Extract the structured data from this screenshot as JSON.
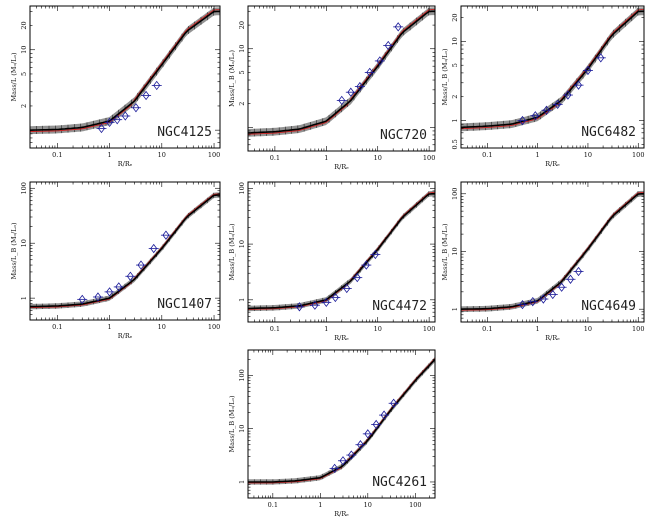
{
  "figure": {
    "x_axis_label": "R/Rₑ",
    "x_ticks": [
      "0.1",
      "1",
      "10",
      "100"
    ],
    "colors": {
      "band": "#3a3a3a",
      "model": "#000000",
      "alt_model": "#cc2222",
      "observations": "#1a1a99"
    }
  },
  "chart_data": [
    {
      "type": "line",
      "title": "NGC4125",
      "ylabel": "Mass/L (Mₒ/Lₒ)",
      "y_ticks": [
        "2",
        "5",
        "10",
        "20"
      ],
      "xlim": [
        0.03,
        130
      ],
      "ylim": [
        0.6,
        35
      ],
      "series": [
        {
          "name": "mass-to-light model",
          "x": [
            0.03,
            0.1,
            0.3,
            1,
            3,
            10,
            30,
            100
          ],
          "values": [
            1.0,
            1.02,
            1.08,
            1.3,
            2.3,
            6.5,
            17,
            30
          ]
        }
      ],
      "observations": {
        "x": [
          0.7,
          1.0,
          1.4,
          2.0,
          3.2,
          5.0,
          8.0
        ],
        "values": [
          1.05,
          1.25,
          1.35,
          1.5,
          1.9,
          2.7,
          3.6
        ]
      }
    },
    {
      "type": "line",
      "title": "NGC720",
      "ylabel": "Mass/L_B (Mₒ/Lₒ)",
      "y_ticks": [
        "2",
        "5",
        "10",
        "20"
      ],
      "xlim": [
        0.03,
        130
      ],
      "ylim": [
        0.5,
        35
      ],
      "series": [
        {
          "name": "mass-to-light model",
          "x": [
            0.03,
            0.1,
            0.3,
            1,
            3,
            10,
            30,
            100
          ],
          "values": [
            0.85,
            0.88,
            0.95,
            1.2,
            2.2,
            6,
            16,
            30
          ]
        }
      ],
      "observations": {
        "x": [
          2.0,
          3.0,
          4.5,
          7.0,
          11,
          16,
          25
        ],
        "values": [
          2.2,
          2.8,
          3.3,
          5.0,
          7.0,
          11,
          19
        ]
      }
    },
    {
      "type": "line",
      "title": "NGC6482",
      "ylabel": "Mass/L_B (Mₒ/Lₒ)",
      "y_ticks": [
        "0.5",
        "1",
        "2",
        "5",
        "10",
        "20"
      ],
      "xlim": [
        0.03,
        130
      ],
      "ylim": [
        0.45,
        28
      ],
      "series": [
        {
          "name": "mass-to-light model",
          "x": [
            0.03,
            0.1,
            0.3,
            1,
            3,
            10,
            30,
            100
          ],
          "values": [
            0.82,
            0.85,
            0.9,
            1.1,
            1.8,
            4.5,
            12,
            24
          ]
        }
      ],
      "observations": {
        "x": [
          0.5,
          0.9,
          1.5,
          2.5,
          4.0,
          6.5,
          10,
          18
        ],
        "values": [
          1.0,
          1.15,
          1.35,
          1.6,
          2.1,
          2.8,
          4.3,
          6.2
        ]
      }
    },
    {
      "type": "line",
      "title": "NGC1407",
      "ylabel": "Mass/L_B (Mₒ/Lₒ)",
      "y_ticks": [
        "1",
        "10",
        "100"
      ],
      "xlim": [
        0.03,
        130
      ],
      "ylim": [
        0.4,
        130
      ],
      "series": [
        {
          "name": "mass-to-light model",
          "x": [
            0.03,
            0.1,
            0.3,
            1,
            3,
            10,
            30,
            100
          ],
          "values": [
            0.7,
            0.72,
            0.78,
            1.0,
            2.2,
            8,
            30,
            75
          ]
        }
      ],
      "observations": {
        "x": [
          0.3,
          0.6,
          1.0,
          1.5,
          2.5,
          4.0,
          7.0,
          12
        ],
        "values": [
          0.95,
          1.05,
          1.3,
          1.6,
          2.5,
          4.0,
          8.0,
          14
        ]
      }
    },
    {
      "type": "line",
      "title": "NGC4472",
      "ylabel": "Mass/L_B (Mₒ/Lₒ)",
      "y_ticks": [
        "1",
        "10",
        "100"
      ],
      "xlim": [
        0.03,
        130
      ],
      "ylim": [
        0.4,
        130
      ],
      "series": [
        {
          "name": "mass-to-light model",
          "x": [
            0.03,
            0.1,
            0.3,
            1,
            3,
            10,
            30,
            100
          ],
          "values": [
            0.7,
            0.72,
            0.78,
            1.0,
            2.2,
            8,
            30,
            80
          ]
        }
      ],
      "observations": {
        "x": [
          0.3,
          0.6,
          1.0,
          1.5,
          2.5,
          4.0,
          6.0,
          9.0
        ],
        "values": [
          0.75,
          0.8,
          0.9,
          1.1,
          1.6,
          2.5,
          4.2,
          6.5
        ]
      }
    },
    {
      "type": "line",
      "title": "NGC4649",
      "ylabel": "Mass/L_B (Mₒ/Lₒ)",
      "y_ticks": [
        "1",
        "10",
        "100"
      ],
      "xlim": [
        0.03,
        130
      ],
      "ylim": [
        0.6,
        160
      ],
      "series": [
        {
          "name": "mass-to-light model",
          "x": [
            0.03,
            0.1,
            0.3,
            1,
            3,
            10,
            30,
            100
          ],
          "values": [
            1.0,
            1.02,
            1.1,
            1.4,
            3.0,
            11,
            40,
            100
          ]
        }
      ],
      "observations": {
        "x": [
          0.5,
          0.8,
          1.3,
          2.0,
          3.0,
          4.5,
          6.5
        ],
        "values": [
          1.2,
          1.35,
          1.5,
          1.8,
          2.4,
          3.3,
          4.5
        ]
      }
    },
    {
      "type": "line",
      "title": "NGC4261",
      "ylabel": "Mass/L_B (Mₒ/Lₒ)",
      "y_ticks": [
        "1",
        "10",
        "100"
      ],
      "xlim": [
        0.03,
        260
      ],
      "ylim": [
        0.5,
        300
      ],
      "series": [
        {
          "name": "mass-to-light model",
          "x": [
            0.03,
            0.1,
            0.3,
            1,
            3,
            10,
            30,
            100,
            260
          ],
          "values": [
            1.0,
            1.0,
            1.05,
            1.2,
            2.0,
            6,
            22,
            80,
            200
          ]
        }
      ],
      "observations": {
        "x": [
          2.0,
          3.0,
          4.5,
          7.0,
          10,
          15,
          22,
          35
        ],
        "values": [
          1.8,
          2.5,
          3.2,
          5.0,
          8.0,
          12,
          18,
          30
        ]
      }
    }
  ]
}
